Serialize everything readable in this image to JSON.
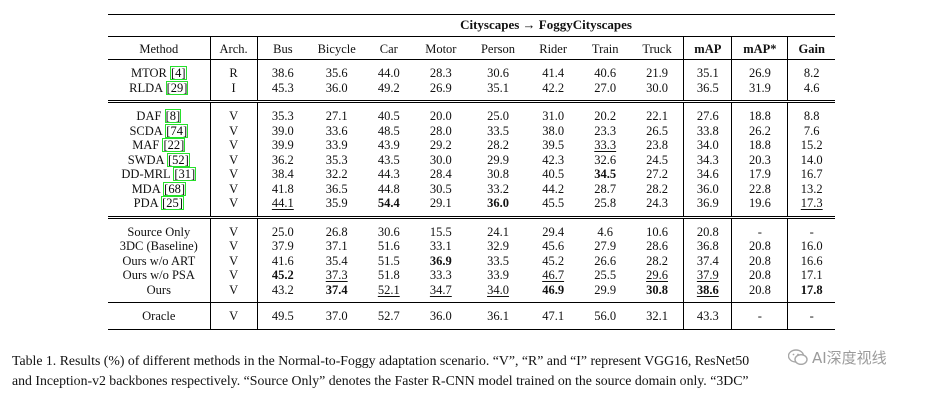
{
  "table": {
    "title_left": "Cityscapes",
    "title_arrow": "→",
    "title_right": "FoggyCityscapes",
    "columns": [
      "Method",
      "Arch.",
      "Bus",
      "Bicycle",
      "Car",
      "Motor",
      "Person",
      "Rider",
      "Train",
      "Truck",
      "mAP",
      "mAP*",
      "Gain"
    ],
    "groups": [
      [
        {
          "method": "MTOR",
          "cite": "4",
          "arch": "R",
          "vals": [
            "38.6",
            "35.6",
            "44.0",
            "28.3",
            "30.6",
            "41.4",
            "40.6",
            "21.9",
            "35.1",
            "26.9",
            "8.2"
          ]
        },
        {
          "method": "RLDA",
          "cite": "29",
          "arch": "I",
          "vals": [
            "45.3",
            "36.0",
            "49.2",
            "26.9",
            "35.1",
            "42.2",
            "27.0",
            "30.0",
            "36.5",
            "31.9",
            "4.6"
          ]
        }
      ],
      [
        {
          "method": "DAF",
          "cite": "8",
          "arch": "V",
          "vals": [
            "35.3",
            "27.1",
            "40.5",
            "20.0",
            "25.0",
            "31.0",
            "20.2",
            "22.1",
            "27.6",
            "18.8",
            "8.8"
          ]
        },
        {
          "method": "SCDA",
          "cite": "74",
          "arch": "V",
          "vals": [
            "39.0",
            "33.6",
            "48.5",
            "28.0",
            "33.5",
            "38.0",
            "23.3",
            "26.5",
            "33.8",
            "26.2",
            "7.6"
          ]
        },
        {
          "method": "MAF",
          "cite": "22",
          "arch": "V",
          "vals": [
            "39.9",
            "33.9",
            "43.9",
            "29.2",
            "28.2",
            "39.5",
            "33.3",
            "23.8",
            "34.0",
            "18.8",
            "15.2"
          ],
          "underline": [
            6
          ]
        },
        {
          "method": "SWDA",
          "cite": "52",
          "arch": "V",
          "vals": [
            "36.2",
            "35.3",
            "43.5",
            "30.0",
            "29.9",
            "42.3",
            "32.6",
            "24.5",
            "34.3",
            "20.3",
            "14.0"
          ]
        },
        {
          "method": "DD-MRL",
          "cite": "31",
          "arch": "V",
          "vals": [
            "38.4",
            "32.2",
            "44.3",
            "28.4",
            "30.8",
            "40.5",
            "34.5",
            "27.2",
            "34.6",
            "17.9",
            "16.7"
          ],
          "bold": [
            6
          ]
        },
        {
          "method": "MDA",
          "cite": "68",
          "arch": "V",
          "vals": [
            "41.8",
            "36.5",
            "44.8",
            "30.5",
            "33.2",
            "44.2",
            "28.7",
            "28.2",
            "36.0",
            "22.8",
            "13.2"
          ]
        },
        {
          "method": "PDA",
          "cite": "25",
          "arch": "V",
          "vals": [
            "44.1",
            "35.9",
            "54.4",
            "29.1",
            "36.0",
            "45.5",
            "25.8",
            "24.3",
            "36.9",
            "19.6",
            "17.3"
          ],
          "underline": [
            0,
            10
          ],
          "bold": [
            2,
            4
          ]
        }
      ],
      [
        {
          "method": "Source Only",
          "cite": "",
          "arch": "V",
          "vals": [
            "25.0",
            "26.8",
            "30.6",
            "15.5",
            "24.1",
            "29.4",
            "4.6",
            "10.6",
            "20.8",
            "-",
            "-"
          ]
        },
        {
          "method": "3DC (Baseline)",
          "cite": "",
          "arch": "V",
          "vals": [
            "37.9",
            "37.1",
            "51.6",
            "33.1",
            "32.9",
            "45.6",
            "27.9",
            "28.6",
            "36.8",
            "20.8",
            "16.0"
          ]
        },
        {
          "method": "Ours w/o ART",
          "cite": "",
          "arch": "V",
          "vals": [
            "41.6",
            "35.4",
            "51.5",
            "36.9",
            "33.5",
            "45.2",
            "26.6",
            "28.2",
            "37.4",
            "20.8",
            "16.6"
          ],
          "bold": [
            3
          ]
        },
        {
          "method": "Ours w/o PSA",
          "cite": "",
          "arch": "V",
          "vals": [
            "45.2",
            "37.3",
            "51.8",
            "33.3",
            "33.9",
            "46.7",
            "25.5",
            "29.6",
            "37.9",
            "20.8",
            "17.1"
          ],
          "bold": [
            0
          ],
          "underline": [
            1,
            5,
            7,
            8
          ]
        },
        {
          "method": "Ours",
          "cite": "",
          "arch": "V",
          "vals": [
            "43.2",
            "37.4",
            "52.1",
            "34.7",
            "34.0",
            "46.9",
            "29.9",
            "30.8",
            "38.6",
            "20.8",
            "17.8"
          ],
          "bold": [
            1,
            5,
            7,
            8,
            10
          ],
          "underline": [
            2,
            3,
            4,
            8
          ]
        }
      ],
      [
        {
          "method": "Oracle",
          "cite": "",
          "arch": "V",
          "vals": [
            "49.5",
            "37.0",
            "52.7",
            "36.0",
            "36.1",
            "47.1",
            "56.0",
            "32.1",
            "43.3",
            "-",
            "-"
          ]
        }
      ]
    ]
  },
  "caption": {
    "line1": "Table 1.  Results (%) of different methods in the Normal-to-Foggy adaptation scenario. “V”, “R” and “I” represent VGG16, ResNet50",
    "line2": "and Inception-v2 backbones respectively.  “Source Only” denotes the Faster R-CNN model trained on the source domain only.  “3DC”"
  },
  "watermark": {
    "text": "AI深度视线",
    "icon": "wechat-bubble-icon"
  }
}
